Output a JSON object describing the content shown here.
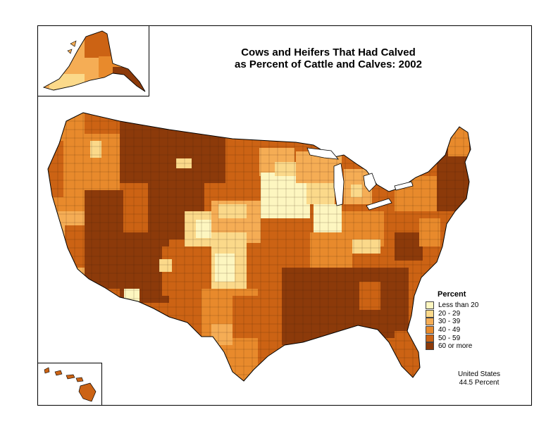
{
  "title": {
    "line1": "Cows and Heifers That Had Calved",
    "line2": "as Percent of Cattle and Calves:  2002"
  },
  "legend": {
    "title": "Percent",
    "items": [
      {
        "label": "Less than 20",
        "color": "#fdf6c0"
      },
      {
        "label": "20 - 29",
        "color": "#fbd98a"
      },
      {
        "label": "30 - 39",
        "color": "#f5ad55"
      },
      {
        "label": "40 - 49",
        "color": "#e88a2c"
      },
      {
        "label": "50 - 59",
        "color": "#cc6314"
      },
      {
        "label": "60 or more",
        "color": "#8c3a0a"
      }
    ]
  },
  "national_note": {
    "line1": "United States",
    "line2": "44.5 Percent"
  },
  "colors": {
    "border": "#000000",
    "background": "#ffffff"
  }
}
